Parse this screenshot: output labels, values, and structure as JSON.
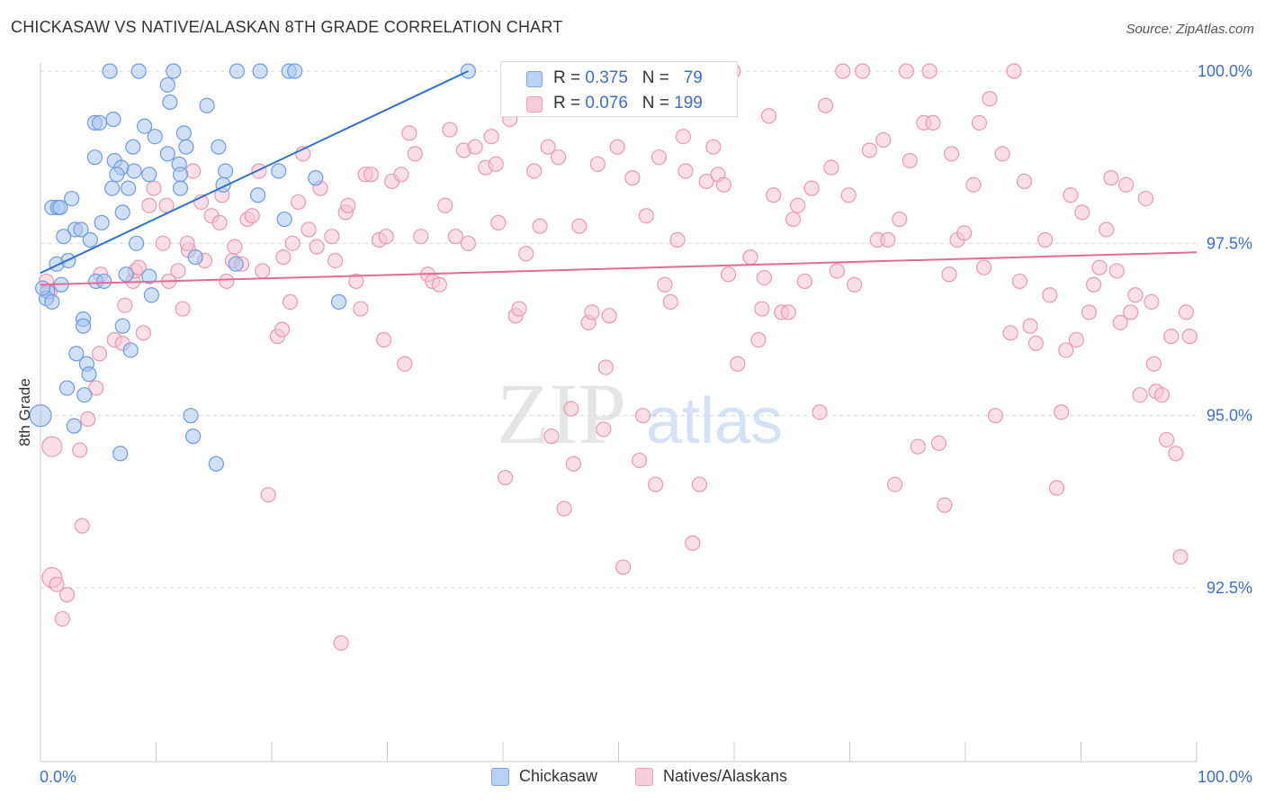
{
  "header": {
    "title": "CHICKASAW VS NATIVE/ALASKAN 8TH GRADE CORRELATION CHART",
    "source": "Source: ZipAtlas.com"
  },
  "legend": {
    "rows": [
      {
        "r_label": "R = ",
        "r_value": "0.375",
        "n_label": "N = ",
        "n_value": "79"
      },
      {
        "r_label": "R = ",
        "r_value": "0.076",
        "n_label": "N = ",
        "n_value": "199"
      }
    ]
  },
  "bottom_legend": {
    "items": [
      "Chickasaw",
      "Natives/Alaskans"
    ]
  },
  "watermark": {
    "zip": "ZIP",
    "atlas": "atlas"
  },
  "colors": {
    "blue_fill": "#a8c6f0",
    "blue_stroke": "#6f9be0",
    "blue_line": "#2f6fcf",
    "pink_fill": "#f6c4d3",
    "pink_stroke": "#e89ab3",
    "pink_line": "#e36b96",
    "axis_text": "#3b6fc9"
  },
  "chart_data": {
    "type": "scatter",
    "title": "CHICKASAW VS NATIVE/ALASKAN 8TH GRADE CORRELATION CHART",
    "xlabel": "",
    "ylabel": "8th Grade",
    "x_tick_labels": [
      "0.0%",
      "100.0%"
    ],
    "y_tick_labels": [
      "100.0%",
      "97.5%",
      "95.0%",
      "92.5%"
    ],
    "y_ticks": [
      100.0,
      97.5,
      95.0,
      92.5
    ],
    "xlim": [
      0,
      100
    ],
    "ylim": [
      90.3,
      100.2
    ],
    "grid": true,
    "legend_position": "top-center",
    "series": [
      {
        "name": "Chickasaw",
        "R": 0.375,
        "N": 79,
        "trend": [
          [
            0,
            97.07
          ],
          [
            37,
            100.0
          ]
        ],
        "points": [
          [
            6,
            100
          ],
          [
            8.5,
            100
          ],
          [
            11.5,
            100
          ],
          [
            17,
            100
          ],
          [
            19,
            100
          ],
          [
            21.5,
            100
          ],
          [
            22,
            100
          ],
          [
            37,
            100
          ],
          [
            11,
            99.8
          ],
          [
            11.2,
            99.55
          ],
          [
            14.4,
            99.5
          ],
          [
            6.3,
            99.3
          ],
          [
            4.7,
            99.25
          ],
          [
            5.1,
            99.25
          ],
          [
            9,
            99.2
          ],
          [
            12.4,
            99.1
          ],
          [
            9.9,
            99.05
          ],
          [
            8,
            98.9
          ],
          [
            12.6,
            98.9
          ],
          [
            15.4,
            98.9
          ],
          [
            11,
            98.8
          ],
          [
            4.7,
            98.75
          ],
          [
            6.4,
            98.7
          ],
          [
            12,
            98.65
          ],
          [
            12.1,
            98.5
          ],
          [
            7,
            98.6
          ],
          [
            8.1,
            98.55
          ],
          [
            16,
            98.55
          ],
          [
            20.6,
            98.55
          ],
          [
            6.6,
            98.5
          ],
          [
            9.4,
            98.5
          ],
          [
            23.8,
            98.45
          ],
          [
            15.8,
            98.35
          ],
          [
            12.1,
            98.3
          ],
          [
            6.2,
            98.3
          ],
          [
            7.6,
            98.3
          ],
          [
            18.8,
            98.2
          ],
          [
            2.7,
            98.15
          ],
          [
            1,
            98.02
          ],
          [
            1.5,
            98.02
          ],
          [
            1.7,
            98.02
          ],
          [
            7.1,
            97.95
          ],
          [
            21.1,
            97.85
          ],
          [
            5.3,
            97.8
          ],
          [
            3,
            97.7
          ],
          [
            3.5,
            97.7
          ],
          [
            2,
            97.6
          ],
          [
            4.3,
            97.55
          ],
          [
            8.3,
            97.5
          ],
          [
            13.4,
            97.3
          ],
          [
            16.9,
            97.2
          ],
          [
            2.4,
            97.25
          ],
          [
            1.4,
            97.2
          ],
          [
            7.4,
            97.05
          ],
          [
            9.4,
            97.02
          ],
          [
            4.8,
            96.95
          ],
          [
            5.5,
            96.95
          ],
          [
            1.8,
            96.9
          ],
          [
            0.6,
            96.8
          ],
          [
            0.5,
            96.7
          ],
          [
            1,
            96.65
          ],
          [
            9.6,
            96.75
          ],
          [
            25.8,
            96.65
          ],
          [
            3.7,
            96.4
          ],
          [
            3.7,
            96.3
          ],
          [
            7.1,
            96.3
          ],
          [
            7.8,
            95.95
          ],
          [
            3.1,
            95.9
          ],
          [
            4,
            95.75
          ],
          [
            4.2,
            95.6
          ],
          [
            2.3,
            95.4
          ],
          [
            3.8,
            95.3
          ],
          [
            0,
            95.0
          ],
          [
            13,
            95.0
          ],
          [
            2.9,
            94.85
          ],
          [
            13.2,
            94.7
          ],
          [
            6.9,
            94.45
          ],
          [
            15.2,
            94.3
          ],
          [
            0.2,
            96.85
          ]
        ]
      },
      {
        "name": "Natives/Alaskans",
        "R": 0.076,
        "N": 199,
        "trend": [
          [
            0,
            96.9
          ],
          [
            100,
            97.37
          ]
        ],
        "points": [
          [
            0.5,
            96.95
          ],
          [
            0.8,
            96.8
          ],
          [
            1,
            94.55
          ],
          [
            1,
            92.65
          ],
          [
            1.4,
            92.55
          ],
          [
            2.3,
            92.4
          ],
          [
            1.9,
            92.05
          ],
          [
            3.6,
            93.4
          ],
          [
            3.4,
            94.5
          ],
          [
            4.1,
            94.95
          ],
          [
            4.8,
            95.4
          ],
          [
            5.1,
            95.9
          ],
          [
            6.4,
            96.1
          ],
          [
            7.1,
            96.05
          ],
          [
            7.3,
            96.6
          ],
          [
            8,
            96.95
          ],
          [
            8.2,
            97.1
          ],
          [
            8.5,
            97.15
          ],
          [
            9.4,
            98.05
          ],
          [
            9.8,
            98.3
          ],
          [
            10.6,
            97.5
          ],
          [
            11.1,
            96.95
          ],
          [
            10.9,
            98.05
          ],
          [
            11.9,
            97.1
          ],
          [
            12.3,
            96.55
          ],
          [
            12.8,
            97.4
          ],
          [
            12.7,
            97.5
          ],
          [
            13.2,
            98.55
          ],
          [
            13.9,
            98.1
          ],
          [
            14.2,
            97.25
          ],
          [
            14.8,
            97.9
          ],
          [
            15.5,
            97.8
          ],
          [
            15.7,
            98.2
          ],
          [
            16.1,
            96.95
          ],
          [
            16.6,
            97.25
          ],
          [
            16.8,
            97.45
          ],
          [
            17.4,
            97.2
          ],
          [
            17.9,
            97.85
          ],
          [
            18.3,
            97.9
          ],
          [
            18.9,
            98.55
          ],
          [
            19.2,
            97.1
          ],
          [
            19.7,
            93.85
          ],
          [
            20.5,
            96.15
          ],
          [
            20.9,
            96.25
          ],
          [
            21,
            97.3
          ],
          [
            21.8,
            97.5
          ],
          [
            22.3,
            98.1
          ],
          [
            22.7,
            98.8
          ],
          [
            23.2,
            97.7
          ],
          [
            23.9,
            97.45
          ],
          [
            24.2,
            98.3
          ],
          [
            25.2,
            97.6
          ],
          [
            25.5,
            97.25
          ],
          [
            26,
            91.7
          ],
          [
            26.4,
            97.95
          ],
          [
            26.6,
            98.05
          ],
          [
            27.3,
            96.95
          ],
          [
            27.7,
            96.55
          ],
          [
            28.1,
            98.5
          ],
          [
            28.6,
            98.5
          ],
          [
            29.3,
            97.55
          ],
          [
            29.7,
            96.1
          ],
          [
            29.9,
            97.6
          ],
          [
            30.4,
            98.4
          ],
          [
            31.2,
            98.5
          ],
          [
            31.5,
            95.75
          ],
          [
            31.9,
            99.1
          ],
          [
            32.4,
            98.8
          ],
          [
            32.9,
            97.6
          ],
          [
            33.5,
            97.05
          ],
          [
            33.9,
            96.95
          ],
          [
            34.5,
            96.9
          ],
          [
            35,
            98.05
          ],
          [
            35.4,
            99.15
          ],
          [
            35.9,
            97.6
          ],
          [
            36.6,
            98.85
          ],
          [
            37,
            97.5
          ],
          [
            37.6,
            98.9
          ],
          [
            38.5,
            98.6
          ],
          [
            39,
            99.05
          ],
          [
            39.4,
            98.65
          ],
          [
            39.6,
            97.8
          ],
          [
            40.2,
            94.1
          ],
          [
            40.6,
            99.3
          ],
          [
            41.1,
            96.45
          ],
          [
            41.4,
            96.55
          ],
          [
            42,
            97.35
          ],
          [
            42.7,
            98.55
          ],
          [
            43.2,
            97.75
          ],
          [
            43.9,
            98.9
          ],
          [
            44.2,
            94.7
          ],
          [
            44.8,
            98.75
          ],
          [
            45.3,
            93.65
          ],
          [
            45.9,
            95.1
          ],
          [
            46.1,
            94.3
          ],
          [
            46.6,
            97.75
          ],
          [
            47.4,
            96.35
          ],
          [
            47.7,
            96.5
          ],
          [
            48.2,
            98.65
          ],
          [
            48.9,
            95.7
          ],
          [
            49.2,
            96.45
          ],
          [
            49.9,
            98.9
          ],
          [
            50.4,
            92.8
          ],
          [
            51.2,
            98.45
          ],
          [
            51.8,
            94.35
          ],
          [
            52.1,
            95.0
          ],
          [
            52.4,
            97.9
          ],
          [
            53.2,
            94.0
          ],
          [
            53.5,
            98.75
          ],
          [
            54,
            96.9
          ],
          [
            54.5,
            96.65
          ],
          [
            55.1,
            97.55
          ],
          [
            55.6,
            99.05
          ],
          [
            55.8,
            98.55
          ],
          [
            56.4,
            93.15
          ],
          [
            57,
            94.0
          ],
          [
            57.6,
            98.4
          ],
          [
            58.2,
            98.9
          ],
          [
            58.6,
            98.5
          ],
          [
            59.1,
            98.35
          ],
          [
            59.5,
            97.05
          ],
          [
            59.9,
            100
          ],
          [
            60.3,
            95.75
          ],
          [
            61.4,
            97.3
          ],
          [
            62.1,
            96.1
          ],
          [
            62.6,
            97.0
          ],
          [
            63,
            99.35
          ],
          [
            63.4,
            98.2
          ],
          [
            64.1,
            96.5
          ],
          [
            64.7,
            96.5
          ],
          [
            65.1,
            97.85
          ],
          [
            65.5,
            98.05
          ],
          [
            66.1,
            96.95
          ],
          [
            66.7,
            98.3
          ],
          [
            67.4,
            95.05
          ],
          [
            67.9,
            99.5
          ],
          [
            68.4,
            98.6
          ],
          [
            68.9,
            97.1
          ],
          [
            69.4,
            100
          ],
          [
            69.9,
            98.2
          ],
          [
            70.4,
            96.9
          ],
          [
            71.1,
            100
          ],
          [
            71.7,
            98.85
          ],
          [
            72.4,
            97.55
          ],
          [
            72.9,
            99.0
          ],
          [
            73.3,
            97.55
          ],
          [
            73.9,
            94.0
          ],
          [
            74.3,
            97.85
          ],
          [
            74.9,
            100
          ],
          [
            75.2,
            98.7
          ],
          [
            75.9,
            94.55
          ],
          [
            76.4,
            99.25
          ],
          [
            76.9,
            100
          ],
          [
            77.2,
            99.25
          ],
          [
            77.7,
            94.6
          ],
          [
            78.2,
            93.7
          ],
          [
            78.8,
            98.8
          ],
          [
            78.6,
            97.05
          ],
          [
            79.3,
            97.55
          ],
          [
            79.9,
            97.65
          ],
          [
            80.7,
            98.35
          ],
          [
            81.2,
            99.25
          ],
          [
            81.6,
            97.15
          ],
          [
            82.1,
            99.6
          ],
          [
            82.6,
            95.0
          ],
          [
            83.2,
            98.8
          ],
          [
            83.9,
            96.2
          ],
          [
            84.2,
            100
          ],
          [
            84.7,
            96.95
          ],
          [
            85.1,
            98.4
          ],
          [
            85.6,
            96.3
          ],
          [
            86.1,
            96.05
          ],
          [
            86.9,
            97.55
          ],
          [
            87.3,
            96.75
          ],
          [
            87.9,
            93.95
          ],
          [
            88.3,
            95.05
          ],
          [
            88.7,
            95.95
          ],
          [
            89.1,
            98.2
          ],
          [
            89.6,
            96.1
          ],
          [
            90.1,
            97.95
          ],
          [
            90.7,
            96.5
          ],
          [
            91.1,
            96.9
          ],
          [
            91.6,
            97.15
          ],
          [
            92.2,
            97.7
          ],
          [
            92.6,
            98.45
          ],
          [
            93.1,
            97.1
          ],
          [
            93.4,
            96.35
          ],
          [
            93.9,
            98.35
          ],
          [
            94.3,
            96.5
          ],
          [
            94.7,
            96.75
          ],
          [
            95.1,
            95.3
          ],
          [
            95.6,
            98.15
          ],
          [
            96.1,
            96.65
          ],
          [
            96.3,
            95.75
          ],
          [
            96.5,
            95.35
          ],
          [
            97,
            95.3
          ],
          [
            97.4,
            94.65
          ],
          [
            97.8,
            96.15
          ],
          [
            98.2,
            94.45
          ],
          [
            98.6,
            92.95
          ],
          [
            99.1,
            96.5
          ],
          [
            99.4,
            96.15
          ],
          [
            62.4,
            96.55
          ],
          [
            48.7,
            94.8
          ],
          [
            21.6,
            96.65
          ],
          [
            8.9,
            96.2
          ],
          [
            5.2,
            97.05
          ]
        ]
      }
    ]
  }
}
